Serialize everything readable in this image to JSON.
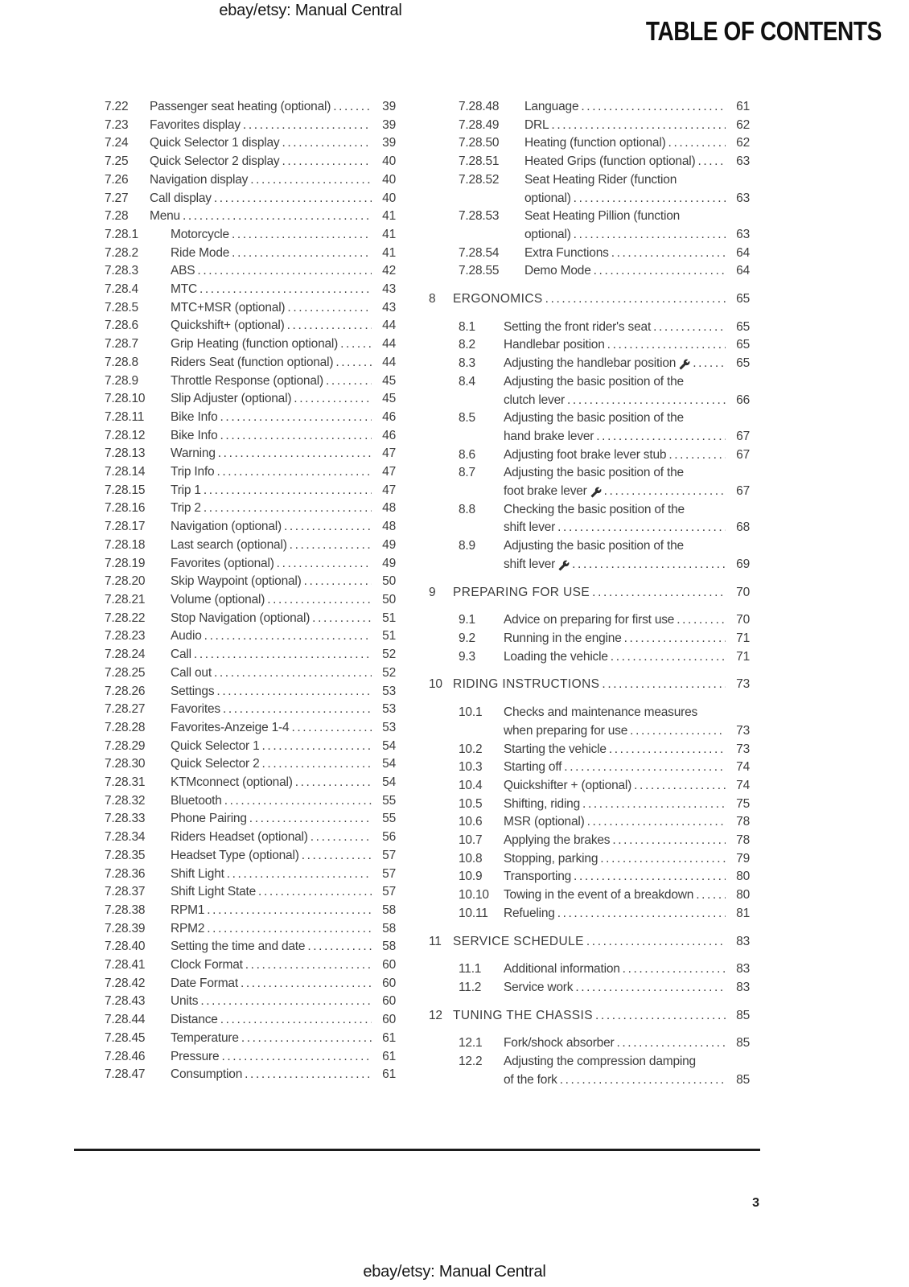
{
  "header": {
    "site_label": "ebay/etsy: Manual Central",
    "banner_title": "TABLE OF CONTENTS"
  },
  "footer": {
    "page_number": "3",
    "site_label": "ebay/etsy: Manual Central"
  },
  "icons": {
    "wrench": "wrench-icon"
  },
  "toc": {
    "columns": [
      {
        "side": "left",
        "entries": [
          {
            "num": "7.22",
            "ind": 1,
            "lines": [
              "Passenger seat heating (optional)"
            ],
            "page": "39"
          },
          {
            "num": "7.23",
            "ind": 1,
            "lines": [
              "Favorites display"
            ],
            "page": "39"
          },
          {
            "num": "7.24",
            "ind": 1,
            "lines": [
              "Quick Selector 1 display"
            ],
            "page": "39"
          },
          {
            "num": "7.25",
            "ind": 1,
            "lines": [
              "Quick Selector 2 display"
            ],
            "page": "40"
          },
          {
            "num": "7.26",
            "ind": 1,
            "lines": [
              "Navigation display"
            ],
            "page": "40"
          },
          {
            "num": "7.27",
            "ind": 1,
            "lines": [
              "Call display"
            ],
            "page": "40"
          },
          {
            "num": "7.28",
            "ind": 1,
            "lines": [
              "Menu"
            ],
            "page": "41"
          },
          {
            "num": "7.28.1",
            "ind": 2,
            "lines": [
              "Motorcycle"
            ],
            "page": "41"
          },
          {
            "num": "7.28.2",
            "ind": 2,
            "lines": [
              "Ride Mode"
            ],
            "page": "41"
          },
          {
            "num": "7.28.3",
            "ind": 2,
            "lines": [
              "ABS"
            ],
            "page": "42"
          },
          {
            "num": "7.28.4",
            "ind": 2,
            "lines": [
              "MTC"
            ],
            "page": "43"
          },
          {
            "num": "7.28.5",
            "ind": 2,
            "lines": [
              "MTC+MSR (optional)"
            ],
            "page": "43"
          },
          {
            "num": "7.28.6",
            "ind": 2,
            "lines": [
              "Quickshift+ (optional)"
            ],
            "page": "44"
          },
          {
            "num": "7.28.7",
            "ind": 2,
            "lines": [
              "Grip Heating (function optional)"
            ],
            "page": "44"
          },
          {
            "num": "7.28.8",
            "ind": 2,
            "lines": [
              "Riders Seat (function optional)"
            ],
            "page": "44"
          },
          {
            "num": "7.28.9",
            "ind": 2,
            "lines": [
              "Throttle Response (optional)"
            ],
            "page": "45"
          },
          {
            "num": "7.28.10",
            "ind": 2,
            "lines": [
              "Slip Adjuster (optional)"
            ],
            "page": "45"
          },
          {
            "num": "7.28.11",
            "ind": 2,
            "lines": [
              "Bike Info"
            ],
            "page": "46"
          },
          {
            "num": "7.28.12",
            "ind": 2,
            "lines": [
              "Bike Info"
            ],
            "page": "46"
          },
          {
            "num": "7.28.13",
            "ind": 2,
            "lines": [
              "Warning"
            ],
            "page": "47"
          },
          {
            "num": "7.28.14",
            "ind": 2,
            "lines": [
              "Trip Info"
            ],
            "page": "47"
          },
          {
            "num": "7.28.15",
            "ind": 2,
            "lines": [
              "Trip 1"
            ],
            "page": "47"
          },
          {
            "num": "7.28.16",
            "ind": 2,
            "lines": [
              "Trip 2"
            ],
            "page": "48"
          },
          {
            "num": "7.28.17",
            "ind": 2,
            "lines": [
              "Navigation (optional)"
            ],
            "page": "48"
          },
          {
            "num": "7.28.18",
            "ind": 2,
            "lines": [
              "Last search (optional)"
            ],
            "page": "49"
          },
          {
            "num": "7.28.19",
            "ind": 2,
            "lines": [
              "Favorites (optional)"
            ],
            "page": "49"
          },
          {
            "num": "7.28.20",
            "ind": 2,
            "lines": [
              "Skip Waypoint (optional)"
            ],
            "page": "50"
          },
          {
            "num": "7.28.21",
            "ind": 2,
            "lines": [
              "Volume (optional)"
            ],
            "page": "50"
          },
          {
            "num": "7.28.22",
            "ind": 2,
            "lines": [
              "Stop Navigation (optional)"
            ],
            "page": "51"
          },
          {
            "num": "7.28.23",
            "ind": 2,
            "lines": [
              "Audio"
            ],
            "page": "51"
          },
          {
            "num": "7.28.24",
            "ind": 2,
            "lines": [
              "Call"
            ],
            "page": "52"
          },
          {
            "num": "7.28.25",
            "ind": 2,
            "lines": [
              "Call out"
            ],
            "page": "52"
          },
          {
            "num": "7.28.26",
            "ind": 2,
            "lines": [
              "Settings"
            ],
            "page": "53"
          },
          {
            "num": "7.28.27",
            "ind": 2,
            "lines": [
              "Favorites"
            ],
            "page": "53"
          },
          {
            "num": "7.28.28",
            "ind": 2,
            "lines": [
              "Favorites-Anzeige 1-4"
            ],
            "page": "53"
          },
          {
            "num": "7.28.29",
            "ind": 2,
            "lines": [
              "Quick Selector 1"
            ],
            "page": "54"
          },
          {
            "num": "7.28.30",
            "ind": 2,
            "lines": [
              "Quick Selector 2"
            ],
            "page": "54"
          },
          {
            "num": "7.28.31",
            "ind": 2,
            "lines": [
              "KTMconnect (optional)"
            ],
            "page": "54"
          },
          {
            "num": "7.28.32",
            "ind": 2,
            "lines": [
              "Bluetooth"
            ],
            "page": "55"
          },
          {
            "num": "7.28.33",
            "ind": 2,
            "lines": [
              "Phone Pairing"
            ],
            "page": "55"
          },
          {
            "num": "7.28.34",
            "ind": 2,
            "lines": [
              "Riders Headset (optional)"
            ],
            "page": "56"
          },
          {
            "num": "7.28.35",
            "ind": 2,
            "lines": [
              "Headset Type (optional)"
            ],
            "page": "57"
          },
          {
            "num": "7.28.36",
            "ind": 2,
            "lines": [
              "Shift Light"
            ],
            "page": "57"
          },
          {
            "num": "7.28.37",
            "ind": 2,
            "lines": [
              "Shift Light State"
            ],
            "page": "57"
          },
          {
            "num": "7.28.38",
            "ind": 2,
            "lines": [
              "RPM1"
            ],
            "page": "58"
          },
          {
            "num": "7.28.39",
            "ind": 2,
            "lines": [
              "RPM2"
            ],
            "page": "58"
          },
          {
            "num": "7.28.40",
            "ind": 2,
            "lines": [
              "Setting the time and date"
            ],
            "page": "58"
          },
          {
            "num": "7.28.41",
            "ind": 2,
            "lines": [
              "Clock Format"
            ],
            "page": "60"
          },
          {
            "num": "7.28.42",
            "ind": 2,
            "lines": [
              "Date Format"
            ],
            "page": "60"
          },
          {
            "num": "7.28.43",
            "ind": 2,
            "lines": [
              "Units"
            ],
            "page": "60"
          },
          {
            "num": "7.28.44",
            "ind": 2,
            "lines": [
              "Distance"
            ],
            "page": "60"
          },
          {
            "num": "7.28.45",
            "ind": 2,
            "lines": [
              "Temperature"
            ],
            "page": "61"
          },
          {
            "num": "7.28.46",
            "ind": 2,
            "lines": [
              "Pressure"
            ],
            "page": "61"
          },
          {
            "num": "7.28.47",
            "ind": 2,
            "lines": [
              "Consumption"
            ],
            "page": "61"
          }
        ]
      },
      {
        "side": "right",
        "entries": [
          {
            "num": "7.28.48",
            "ind": 2,
            "lines": [
              "Language"
            ],
            "page": "61"
          },
          {
            "num": "7.28.49",
            "ind": 2,
            "lines": [
              "DRL"
            ],
            "page": "62"
          },
          {
            "num": "7.28.50",
            "ind": 2,
            "lines": [
              "Heating (function optional)"
            ],
            "page": "62"
          },
          {
            "num": "7.28.51",
            "ind": 2,
            "lines": [
              "Heated Grips (function optional)"
            ],
            "page": "63"
          },
          {
            "num": "7.28.52",
            "ind": 2,
            "lines": [
              "Seat Heating Rider (function",
              "optional)"
            ],
            "page": "63"
          },
          {
            "num": "7.28.53",
            "ind": 2,
            "lines": [
              "Seat Heating Pillion (function",
              "optional)"
            ],
            "page": "63"
          },
          {
            "num": "7.28.54",
            "ind": 2,
            "lines": [
              "Extra Functions"
            ],
            "page": "64"
          },
          {
            "num": "7.28.55",
            "ind": 2,
            "lines": [
              "Demo Mode"
            ],
            "page": "64"
          },
          {
            "num": "8",
            "chapter": true,
            "lines": [
              "ERGONOMICS"
            ],
            "page": "65"
          },
          {
            "num": "8.1",
            "ind": 1,
            "lines": [
              "Setting the front rider's seat"
            ],
            "page": "65"
          },
          {
            "num": "8.2",
            "ind": 1,
            "lines": [
              "Handlebar position"
            ],
            "page": "65"
          },
          {
            "num": "8.3",
            "ind": 1,
            "lines": [
              "Adjusting the handlebar position"
            ],
            "wrench": true,
            "page": "65"
          },
          {
            "num": "8.4",
            "ind": 1,
            "lines": [
              "Adjusting the basic position of the",
              "clutch lever"
            ],
            "page": "66"
          },
          {
            "num": "8.5",
            "ind": 1,
            "lines": [
              "Adjusting the basic position of the",
              "hand brake lever"
            ],
            "page": "67"
          },
          {
            "num": "8.6",
            "ind": 1,
            "lines": [
              "Adjusting foot brake lever stub"
            ],
            "page": "67"
          },
          {
            "num": "8.7",
            "ind": 1,
            "lines": [
              "Adjusting the basic position of the",
              "foot brake lever"
            ],
            "wrench": true,
            "page": "67"
          },
          {
            "num": "8.8",
            "ind": 1,
            "lines": [
              "Checking the basic position of the",
              "shift lever"
            ],
            "page": "68"
          },
          {
            "num": "8.9",
            "ind": 1,
            "lines": [
              "Adjusting the basic position of the",
              "shift lever"
            ],
            "wrench": true,
            "page": "69"
          },
          {
            "num": "9",
            "chapter": true,
            "lines": [
              "PREPARING FOR USE"
            ],
            "page": "70"
          },
          {
            "num": "9.1",
            "ind": 1,
            "lines": [
              "Advice on preparing for first use"
            ],
            "page": "70"
          },
          {
            "num": "9.2",
            "ind": 1,
            "lines": [
              "Running in the engine"
            ],
            "page": "71"
          },
          {
            "num": "9.3",
            "ind": 1,
            "lines": [
              "Loading the vehicle"
            ],
            "page": "71"
          },
          {
            "num": "10",
            "chapter": true,
            "lines": [
              "RIDING INSTRUCTIONS"
            ],
            "page": "73"
          },
          {
            "num": "10.1",
            "ind": 1,
            "lines": [
              "Checks and maintenance measures",
              "when preparing for use"
            ],
            "page": "73"
          },
          {
            "num": "10.2",
            "ind": 1,
            "lines": [
              "Starting the vehicle"
            ],
            "page": "73"
          },
          {
            "num": "10.3",
            "ind": 1,
            "lines": [
              "Starting off"
            ],
            "page": "74"
          },
          {
            "num": "10.4",
            "ind": 1,
            "lines": [
              "Quickshifter + (optional)"
            ],
            "page": "74"
          },
          {
            "num": "10.5",
            "ind": 1,
            "lines": [
              "Shifting, riding"
            ],
            "page": "75"
          },
          {
            "num": "10.6",
            "ind": 1,
            "lines": [
              "MSR (optional)"
            ],
            "page": "78"
          },
          {
            "num": "10.7",
            "ind": 1,
            "lines": [
              "Applying the brakes"
            ],
            "page": "78"
          },
          {
            "num": "10.8",
            "ind": 1,
            "lines": [
              "Stopping, parking"
            ],
            "page": "79"
          },
          {
            "num": "10.9",
            "ind": 1,
            "lines": [
              "Transporting"
            ],
            "page": "80"
          },
          {
            "num": "10.10",
            "ind": 1,
            "lines": [
              "Towing in the event of a breakdown"
            ],
            "page": "80"
          },
          {
            "num": "10.11",
            "ind": 1,
            "lines": [
              "Refueling"
            ],
            "page": "81"
          },
          {
            "num": "11",
            "chapter": true,
            "lines": [
              "SERVICE SCHEDULE"
            ],
            "page": "83"
          },
          {
            "num": "11.1",
            "ind": 1,
            "lines": [
              "Additional information"
            ],
            "page": "83"
          },
          {
            "num": "11.2",
            "ind": 1,
            "lines": [
              "Service work"
            ],
            "page": "83"
          },
          {
            "num": "12",
            "chapter": true,
            "lines": [
              "TUNING THE CHASSIS"
            ],
            "page": "85"
          },
          {
            "num": "12.1",
            "ind": 1,
            "lines": [
              "Fork/shock absorber"
            ],
            "page": "85"
          },
          {
            "num": "12.2",
            "ind": 1,
            "lines": [
              "Adjusting the compression damping",
              "of the fork"
            ],
            "page": "85"
          }
        ]
      }
    ]
  }
}
